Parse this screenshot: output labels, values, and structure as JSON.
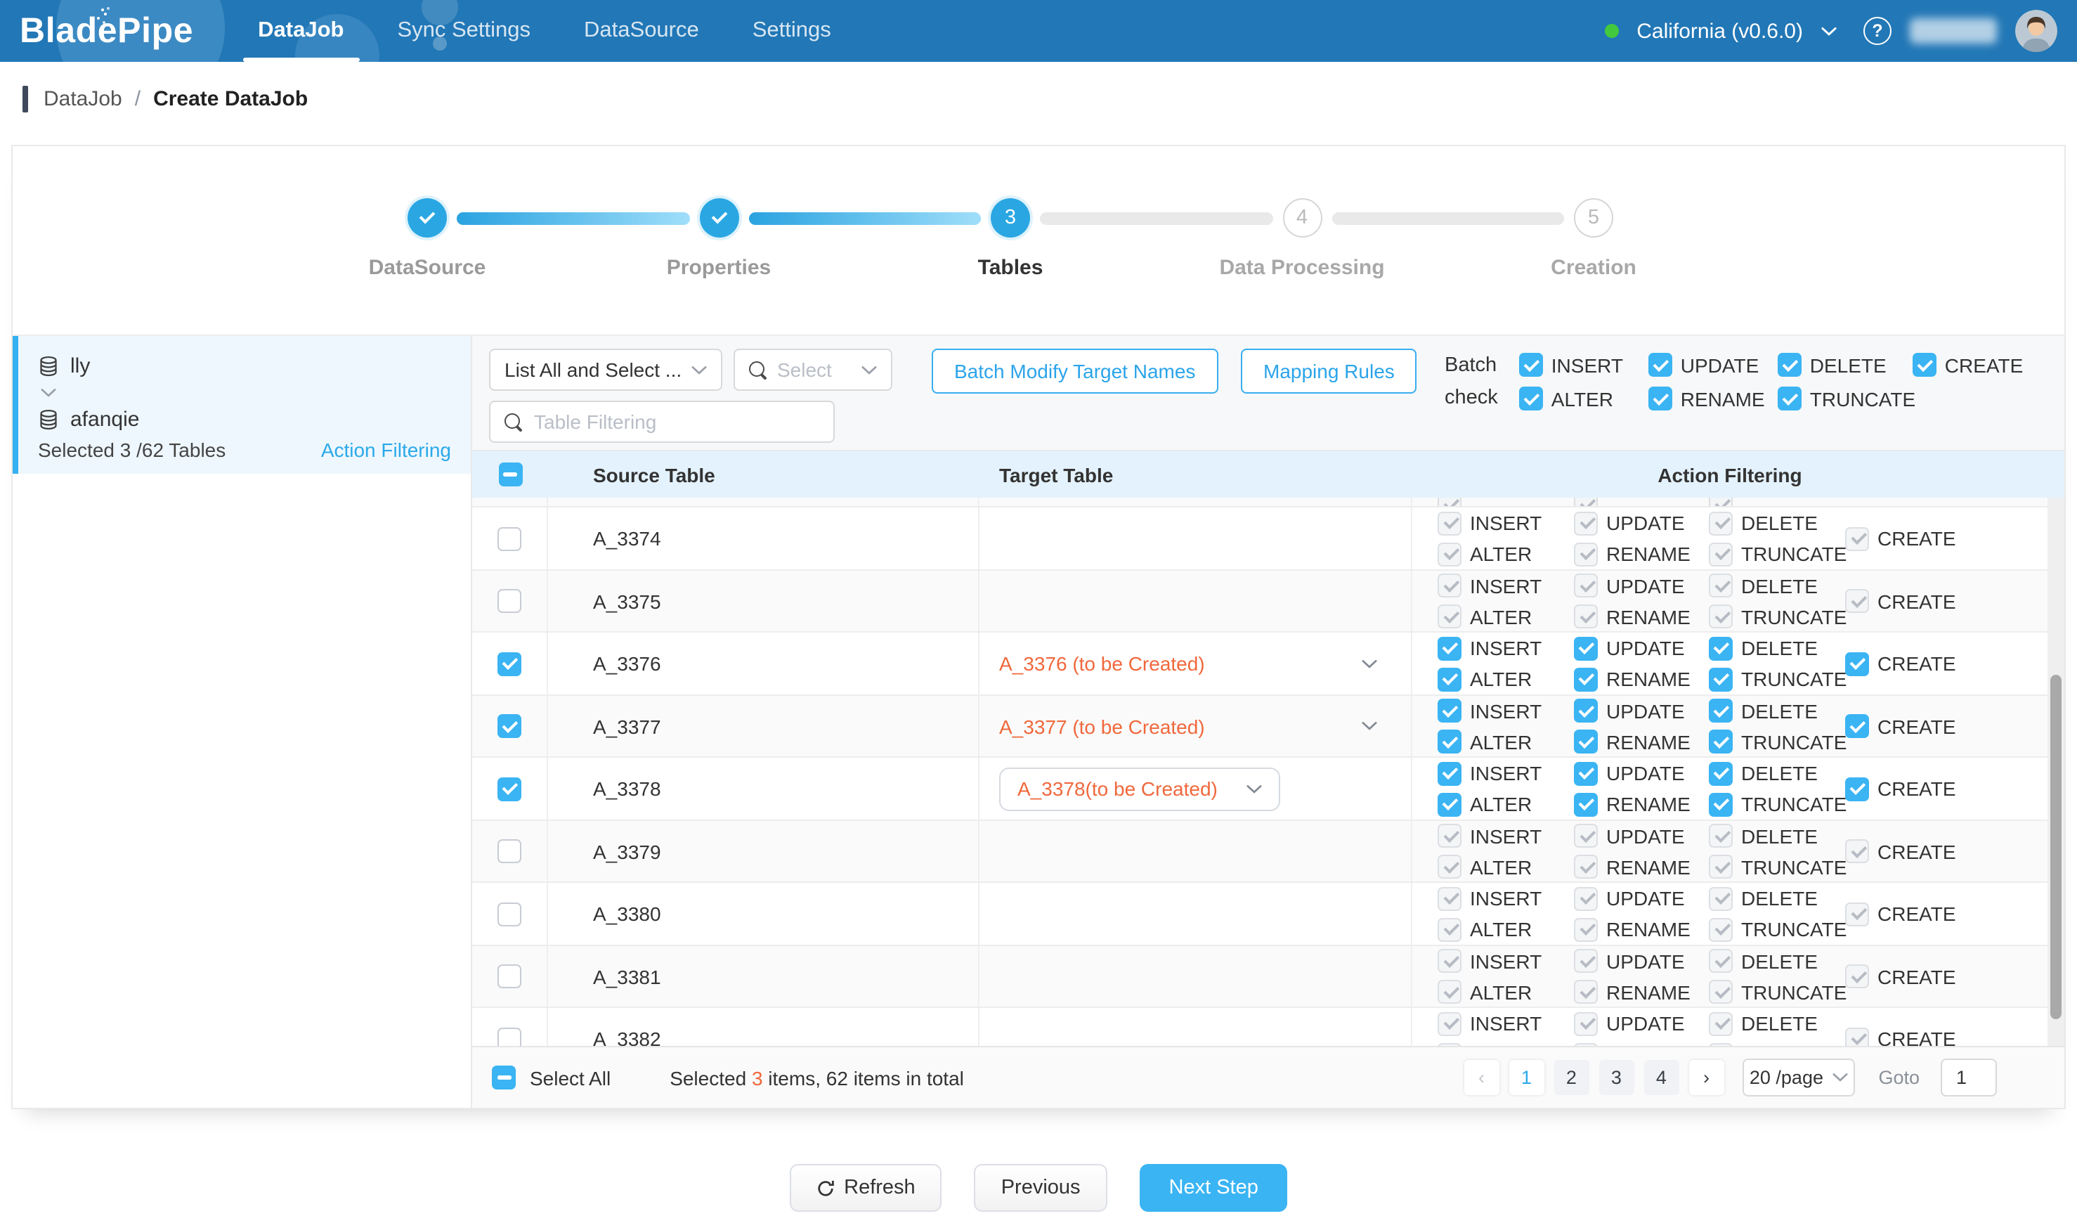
{
  "colors": {
    "navbar": "#2277b6",
    "accent": "#3ab4f3",
    "link": "#2ba9e8",
    "orange": "#f0683c",
    "green_dot": "#43c93e",
    "header_bg": "#e4f2fd",
    "sidebar_highlight": "#eef7fe"
  },
  "navbar": {
    "logo": "BladePipe",
    "items": [
      {
        "label": "DataJob",
        "active": true
      },
      {
        "label": "Sync Settings",
        "active": false
      },
      {
        "label": "DataSource",
        "active": false
      },
      {
        "label": "Settings",
        "active": false
      }
    ],
    "region": "California (v0.6.0)"
  },
  "breadcrumb": {
    "parent": "DataJob",
    "separator": "/",
    "current": "Create DataJob"
  },
  "stepper": {
    "steps": [
      {
        "label": "DataSource",
        "state": "done"
      },
      {
        "label": "Properties",
        "state": "done"
      },
      {
        "label": "Tables",
        "state": "active",
        "number": "3"
      },
      {
        "label": "Data Processing",
        "state": "pending",
        "number": "4"
      },
      {
        "label": "Creation",
        "state": "pending",
        "number": "5"
      }
    ]
  },
  "sidebar": {
    "datasource": "lly",
    "schema": "afanqie",
    "selection_summary": "Selected 3 /62 Tables",
    "action_filtering_link": "Action Filtering"
  },
  "toolbar": {
    "list_mode_value": "List All and Select ...",
    "select_placeholder": "Select",
    "filter_placeholder": "Table Filtering",
    "batch_modify_button": "Batch Modify Target Names",
    "mapping_rules_button": "Mapping Rules",
    "batch_check_line1": "Batch",
    "batch_check_line2": "check",
    "batch_actions_row1": [
      "INSERT",
      "UPDATE",
      "DELETE",
      "CREATE"
    ],
    "batch_actions_row2": [
      "ALTER",
      "RENAME",
      "TRUNCATE"
    ]
  },
  "table": {
    "headers": {
      "source": "Source Table",
      "target": "Target Table",
      "actions": "Action Filtering"
    },
    "action_labels_row1": [
      "INSERT",
      "UPDATE",
      "DELETE",
      "CREATE"
    ],
    "action_labels_row2": [
      "ALTER",
      "RENAME",
      "TRUNCATE"
    ],
    "has_clipped_row_top": true,
    "rows": [
      {
        "source": "A_3374",
        "target": "",
        "selected": false,
        "target_style": "none"
      },
      {
        "source": "A_3375",
        "target": "",
        "selected": false,
        "target_style": "none"
      },
      {
        "source": "A_3376",
        "target": "A_3376 (to be Created)",
        "selected": true,
        "target_style": "plain"
      },
      {
        "source": "A_3377",
        "target": "A_3377 (to be Created)",
        "selected": true,
        "target_style": "plain"
      },
      {
        "source": "A_3378",
        "target": "A_3378(to be Created)",
        "selected": true,
        "target_style": "boxed"
      },
      {
        "source": "A_3379",
        "target": "",
        "selected": false,
        "target_style": "none"
      },
      {
        "source": "A_3380",
        "target": "",
        "selected": false,
        "target_style": "none"
      },
      {
        "source": "A_3381",
        "target": "",
        "selected": false,
        "target_style": "none"
      },
      {
        "source": "A_3382",
        "target": "",
        "selected": false,
        "target_style": "none"
      }
    ]
  },
  "footer": {
    "select_all_label": "Select All",
    "summary_prefix": "Selected ",
    "selected_count": "3",
    "summary_suffix": " items, 62 items in total",
    "pager": {
      "prev": "‹",
      "next": "›",
      "pages": [
        "1",
        "2",
        "3",
        "4"
      ],
      "active_page": "1",
      "page_size": "20 /page",
      "goto_label": "Goto",
      "goto_value": "1"
    }
  },
  "actions": {
    "refresh": "Refresh",
    "previous": "Previous",
    "next_step": "Next Step"
  }
}
